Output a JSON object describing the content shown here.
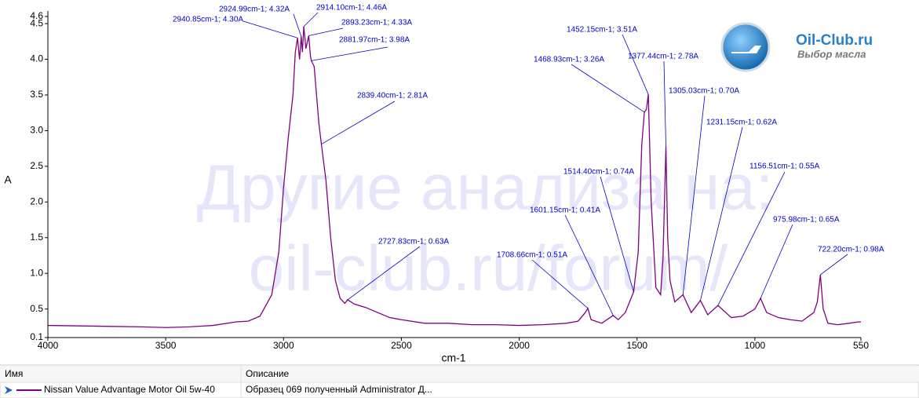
{
  "chart_data": {
    "type": "line",
    "x_label": "cm-1",
    "y_label": "A",
    "x": [
      4000,
      3800,
      3600,
      3500,
      3400,
      3300,
      3200,
      3150,
      3100,
      3050,
      3020,
      3000,
      2980,
      2960,
      2950,
      2940.85,
      2932,
      2924.99,
      2920,
      2914.1,
      2905,
      2893.23,
      2886,
      2881.97,
      2870,
      2860,
      2850,
      2839.4,
      2820,
      2800,
      2780,
      2760,
      2740,
      2727.83,
      2700,
      2650,
      2600,
      2550,
      2500,
      2400,
      2300,
      2200,
      2100,
      2000,
      1900,
      1800,
      1750,
      1720,
      1708.66,
      1695,
      1650,
      1601.15,
      1580,
      1550,
      1514.4,
      1495,
      1480,
      1468.93,
      1460,
      1452.15,
      1440,
      1420,
      1400,
      1390,
      1377.44,
      1370,
      1360,
      1340,
      1305.03,
      1270,
      1231.15,
      1200,
      1156.51,
      1100,
      1050,
      1000,
      975.98,
      950,
      900,
      850,
      800,
      750,
      735,
      722.2,
      710,
      690,
      650,
      600,
      560,
      550
    ],
    "series": [
      {
        "name": "Nissan Value Advantage Motor Oil 5w-40",
        "color": "#800080",
        "values": [
          0.27,
          0.26,
          0.25,
          0.24,
          0.25,
          0.27,
          0.32,
          0.33,
          0.4,
          0.7,
          1.3,
          2.2,
          2.9,
          3.5,
          4.1,
          4.3,
          4.0,
          4.32,
          4.1,
          4.46,
          4.15,
          4.33,
          4.05,
          3.98,
          3.9,
          3.5,
          3.1,
          2.81,
          2.3,
          1.5,
          0.9,
          0.65,
          0.58,
          0.63,
          0.57,
          0.52,
          0.45,
          0.38,
          0.35,
          0.3,
          0.3,
          0.28,
          0.28,
          0.27,
          0.28,
          0.3,
          0.33,
          0.45,
          0.51,
          0.35,
          0.3,
          0.41,
          0.35,
          0.45,
          0.74,
          1.3,
          2.8,
          3.26,
          3.3,
          3.51,
          2.0,
          0.8,
          0.7,
          1.2,
          2.78,
          1.5,
          0.9,
          0.6,
          0.7,
          0.45,
          0.62,
          0.42,
          0.55,
          0.38,
          0.4,
          0.5,
          0.65,
          0.45,
          0.38,
          0.35,
          0.33,
          0.45,
          0.6,
          0.98,
          0.5,
          0.3,
          0.28,
          0.3,
          0.32,
          0.32
        ]
      }
    ],
    "xlim": [
      4000,
      550
    ],
    "ylim": [
      0.1,
      4.6
    ],
    "xticks": [
      4000,
      3500,
      3000,
      2500,
      2000,
      1500,
      1000,
      550
    ],
    "yticks": [
      0.1,
      0.5,
      {
        "value": 1,
        "label": "1.0"
      },
      1.5,
      {
        "value": 2,
        "label": "2.0"
      },
      2.5,
      {
        "value": 3,
        "label": "3.0"
      },
      3.5,
      {
        "value": 4,
        "label": "4.0"
      },
      4.5,
      4.6
    ],
    "grid": false,
    "annotations": [
      "2924.99cm-1; 4.32A",
      "2914.10cm-1; 4.46A",
      "2940.85cm-1; 4.30A",
      "2893.23cm-1; 4.33A",
      "2881.97cm-1; 3.98A",
      "2839.40cm-1; 2.81A",
      "2727.83cm-1; 0.63A",
      "1452.15cm-1; 3.51A",
      "1468.93cm-1; 3.26A",
      "1377.44cm-1; 2.78A",
      "1305.03cm-1; 0.70A",
      "1231.15cm-1; 0.62A",
      "1514.40cm-1; 0.74A",
      "1156.51cm-1; 0.55A",
      "1601.15cm-1; 0.41A",
      "975.98cm-1; 0.65A",
      "1708.66cm-1; 0.51A",
      "722.20cm-1; 0.98A"
    ],
    "watermark": [
      "Другие анализа на:",
      "oil-club.ru/forum/"
    ]
  },
  "logo": {
    "title": "Oil-Club.ru",
    "subtitle": "Выбор масла"
  },
  "table": {
    "headers": [
      "Имя",
      "Описание"
    ],
    "rows": [
      {
        "description": "Образец 069 полученный Administrator Д..."
      }
    ]
  }
}
